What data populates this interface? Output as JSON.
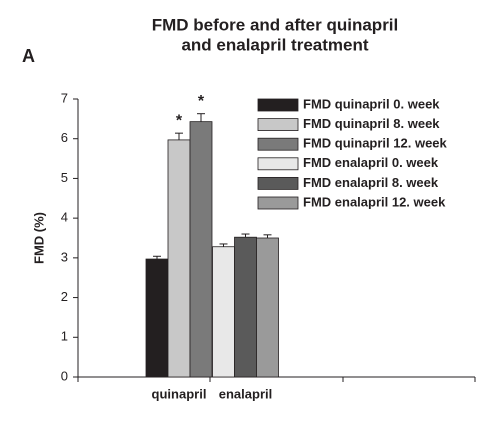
{
  "chart_data": {
    "type": "bar",
    "title": [
      "FMD before and after quinapril",
      "and enalapril treatment"
    ],
    "panel_label": "A",
    "y_label": "FMD (%)",
    "categories": [
      "quinapril",
      "enalapril"
    ],
    "series": [
      {
        "name": "FMD quinapril 0. week",
        "color": "#231f20",
        "values": [
          2.97,
          null
        ],
        "errors": [
          0.07,
          null
        ]
      },
      {
        "name": "FMD quinapril 8. week",
        "color": "#c8c8c8",
        "values": [
          5.97,
          null
        ],
        "errors": [
          0.17,
          null
        ],
        "annotation": "*"
      },
      {
        "name": "FMD quinapril 12. week",
        "color": "#7a7a7a",
        "values": [
          6.43,
          null
        ],
        "errors": [
          0.2,
          null
        ],
        "annotation": "*"
      },
      {
        "name": "FMD enalapril 0. week",
        "color": "#e8e8e8",
        "values": [
          null,
          3.28
        ],
        "errors": [
          null,
          0.07
        ]
      },
      {
        "name": "FMD enalapril 8. week",
        "color": "#5a5a5a",
        "values": [
          null,
          3.52
        ],
        "errors": [
          null,
          0.08
        ]
      },
      {
        "name": "FMD enalapril 12. week",
        "color": "#9a9a9a",
        "values": [
          null,
          3.5
        ],
        "errors": [
          null,
          0.08
        ]
      }
    ],
    "ylim": [
      0,
      7
    ],
    "yticks": [
      0,
      1,
      2,
      3,
      4,
      5,
      6,
      7
    ]
  }
}
